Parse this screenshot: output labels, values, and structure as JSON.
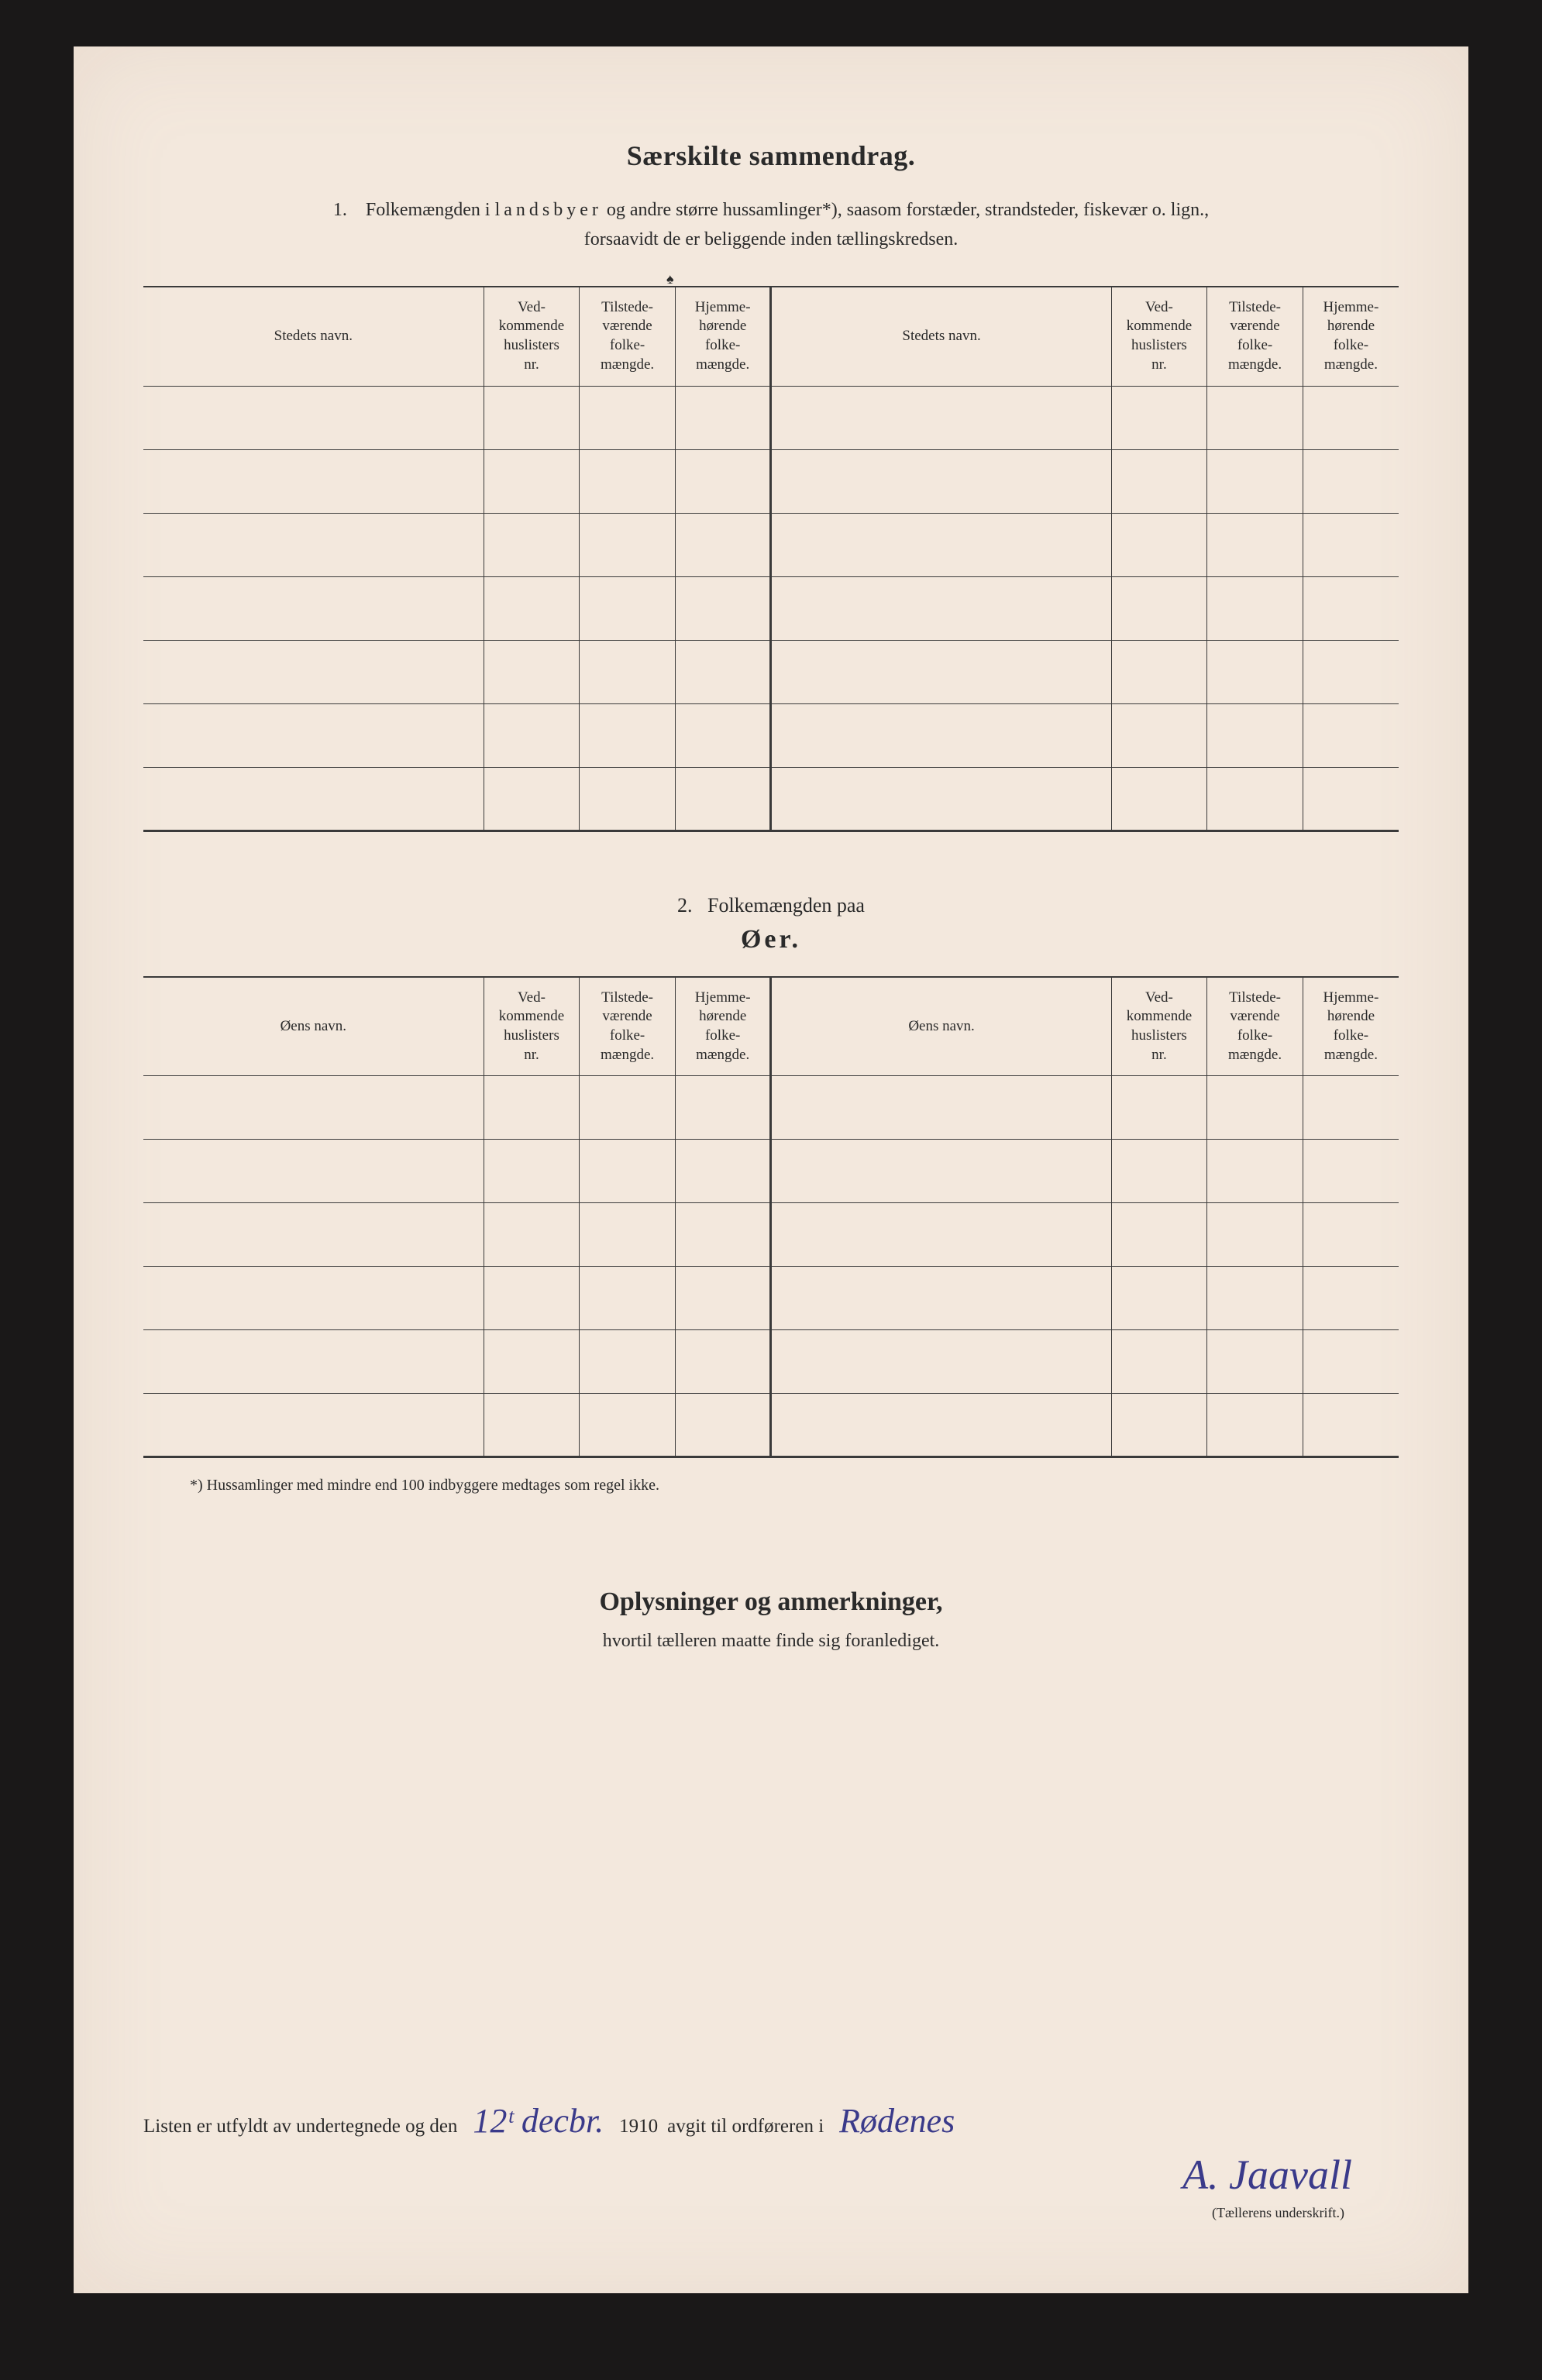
{
  "title": "Særskilte sammendrag.",
  "intro_num": "1.",
  "intro_line1a": "Folkemængden i ",
  "intro_line1b": "landsbyer",
  "intro_line1c": " og andre større hussamlinger*), saasom forstæder, strandsteder, fiskevær o. lign.,",
  "intro_line2": "forsaavidt de er beliggende inden tællingskredsen.",
  "table1": {
    "headers_left": {
      "c1": "Stedets navn.",
      "c2": "Ved-\nkommende\nhuslisters\nnr.",
      "c3": "Tilstede-\nværende\nfolke-\nmængde.",
      "c4": "Hjemme-\nhørende\nfolke-\nmængde."
    },
    "headers_right": {
      "c1": "Stedets navn.",
      "c2": "Ved-\nkommende\nhuslisters\nnr.",
      "c3": "Tilstede-\nværende\nfolke-\nmængde.",
      "c4": "Hjemme-\nhørende\nfolke-\nmængde."
    },
    "row_count": 7
  },
  "section2_num": "2.",
  "section2_text": "Folkemængden paa",
  "section2_sub": "Øer.",
  "table2": {
    "headers_left": {
      "c1": "Øens navn.",
      "c2": "Ved-\nkommende\nhuslisters\nnr.",
      "c3": "Tilstede-\nværende\nfolke-\nmængde.",
      "c4": "Hjemme-\nhørende\nfolke-\nmængde."
    },
    "headers_right": {
      "c1": "Øens navn.",
      "c2": "Ved-\nkommende\nhuslisters\nnr.",
      "c3": "Tilstede-\nværende\nfolke-\nmængde.",
      "c4": "Hjemme-\nhørende\nfolke-\nmængde."
    },
    "row_count": 6
  },
  "footnote": "*)   Hussamlinger med mindre end 100 indbyggere medtages som regel ikke.",
  "oplys_title": "Oplysninger og anmerkninger,",
  "oplys_sub": "hvortil tælleren maatte finde sig foranlediget.",
  "sig": {
    "pre1": "Listen er utfyldt av undertegnede og den",
    "date_hand": "12ᵗ decbr.",
    "year": "1910",
    "pre2": "avgit til ordføreren i",
    "place_hand": "Rødenes",
    "name_hand": "A. Jaavall",
    "caption": "(Tællerens underskrift.)"
  },
  "colors": {
    "page_bg": "#f3e8dd",
    "outer_bg": "#1a1818",
    "ink": "#2a2a2a",
    "pen": "#3a3a8a"
  }
}
